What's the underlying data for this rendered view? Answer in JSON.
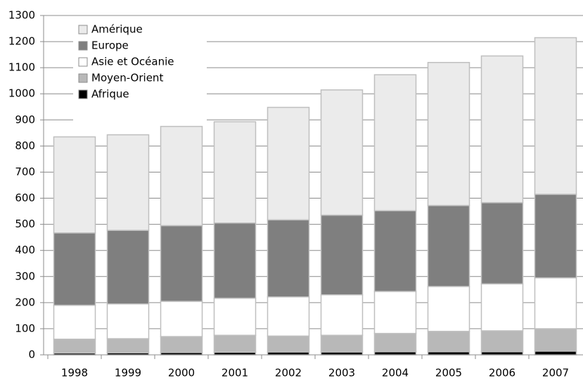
{
  "chart_data": {
    "type": "stacked_bar",
    "categories": [
      "1998",
      "1999",
      "2000",
      "2001",
      "2002",
      "2003",
      "2004",
      "2005",
      "2006",
      "2007"
    ],
    "series": [
      {
        "name": "Afrique",
        "color": "#000000",
        "values": [
          7,
          8,
          9,
          10,
          11,
          11,
          12,
          12,
          12,
          14
        ]
      },
      {
        "name": "Moyen-Orient",
        "color": "#b8b8b8",
        "values": [
          53,
          54,
          61,
          65,
          61,
          64,
          70,
          78,
          80,
          86
        ]
      },
      {
        "name": "Asie et Océanie",
        "color": "#ffffff",
        "values": [
          130,
          133,
          135,
          142,
          150,
          155,
          161,
          172,
          180,
          195
        ]
      },
      {
        "name": "Europe",
        "color": "#7f7f7f",
        "values": [
          277,
          282,
          290,
          288,
          295,
          305,
          309,
          310,
          311,
          320
        ]
      },
      {
        "name": "Amérique",
        "color": "#ebebeb",
        "values": [
          368,
          366,
          380,
          388,
          431,
          480,
          521,
          548,
          562,
          600
        ]
      }
    ],
    "ylim": [
      0,
      1300
    ],
    "yticks": [
      0,
      100,
      200,
      300,
      400,
      500,
      600,
      700,
      800,
      900,
      1000,
      1100,
      1200,
      1300
    ],
    "grid": true,
    "legend": "top-left"
  }
}
